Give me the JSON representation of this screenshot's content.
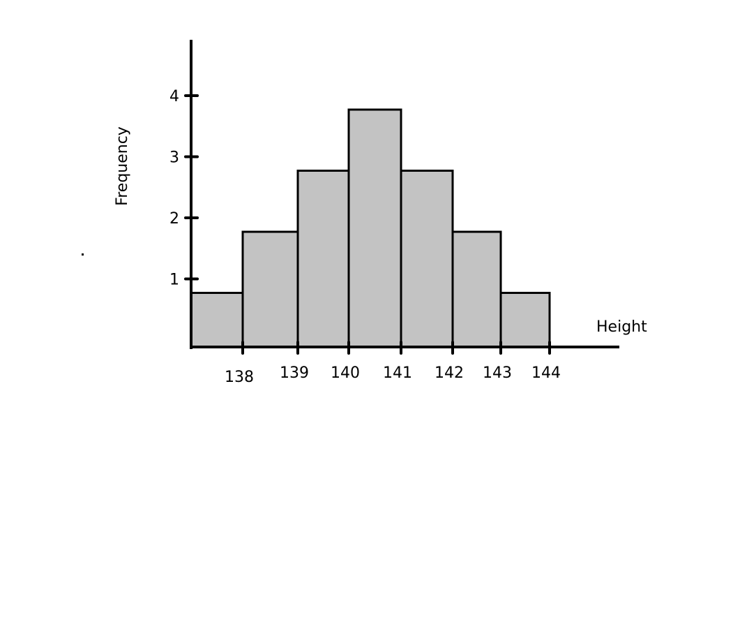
{
  "chart_data": {
    "type": "bar",
    "title": "",
    "xlabel": "Height",
    "ylabel": "Frequency",
    "bins": [
      [
        137,
        138
      ],
      [
        138,
        139
      ],
      [
        139,
        140
      ],
      [
        140,
        141
      ],
      [
        141,
        142
      ],
      [
        142,
        143
      ],
      [
        143,
        144
      ]
    ],
    "values": [
      1,
      2,
      3,
      4,
      3,
      2,
      1
    ],
    "x_ticks": [
      "138",
      "139",
      "140",
      "141",
      "142",
      "143",
      "144"
    ],
    "y_ticks": [
      "1",
      "2",
      "3",
      "4"
    ],
    "ylim": [
      0,
      4.5
    ],
    "grid": false,
    "bar_color": "#c3c3c3"
  }
}
